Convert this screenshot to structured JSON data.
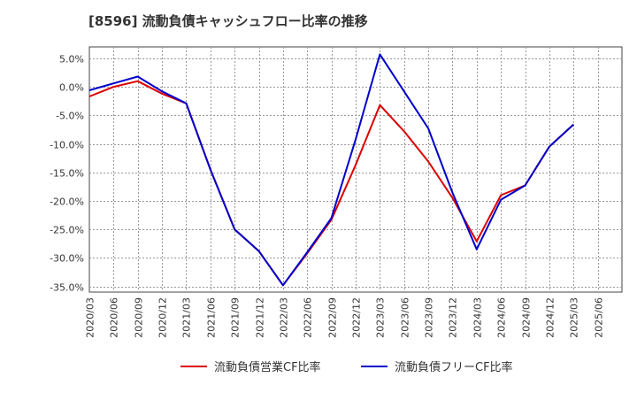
{
  "chart_data": {
    "type": "line",
    "title": "[8596]  流動負債キャッシュフロー比率の推移",
    "xlabel": "",
    "ylabel": "",
    "ylim": [
      -36,
      7
    ],
    "yticks": [
      5,
      0,
      -5,
      -10,
      -15,
      -20,
      -25,
      -30,
      -35
    ],
    "ytick_labels": [
      "5.0%",
      "0.0%",
      "-5.0%",
      "-10.0%",
      "-15.0%",
      "-20.0%",
      "-25.0%",
      "-30.0%",
      "-35.0%"
    ],
    "categories": [
      "2020/03",
      "2020/06",
      "2020/09",
      "2020/12",
      "2021/03",
      "2021/06",
      "2021/09",
      "2021/12",
      "2022/03",
      "2022/06",
      "2022/09",
      "2022/12",
      "2023/03",
      "2023/06",
      "2023/09",
      "2023/12",
      "2024/03",
      "2024/06",
      "2024/09",
      "2024/12",
      "2025/03",
      "2025/06"
    ],
    "grid": true,
    "legend_position": "bottom",
    "series": [
      {
        "name": "流動負債営業CF比率",
        "color": "#dd0000",
        "values": [
          -1.7,
          0.0,
          1.0,
          -1.2,
          -2.9,
          -14.5,
          -25.0,
          -28.8,
          -34.8,
          -29.2,
          -23.3,
          -13.7,
          -3.2,
          -7.8,
          -13.1,
          -19.5,
          -27.1,
          -19.0,
          -17.3,
          -10.5,
          -6.6,
          null
        ]
      },
      {
        "name": "流動負債フリーCF比率",
        "color": "#0000cc",
        "values": [
          -0.6,
          0.6,
          1.8,
          -0.8,
          -2.9,
          -14.5,
          -25.0,
          -28.8,
          -34.8,
          -29.0,
          -23.0,
          -9.2,
          5.7,
          -0.8,
          -7.3,
          -18.6,
          -28.5,
          -19.8,
          -17.3,
          -10.5,
          -6.6,
          null
        ]
      }
    ]
  }
}
